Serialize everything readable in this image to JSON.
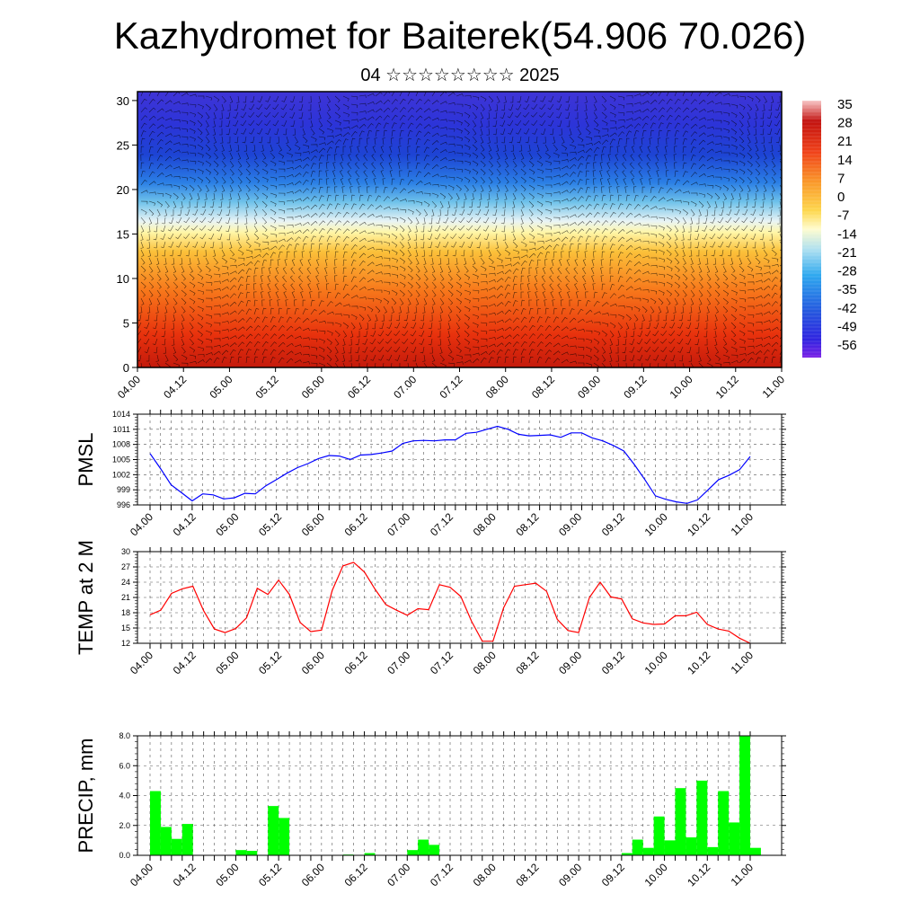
{
  "title": "Kazhydromet for Baiterek(54.906 70.026)",
  "subtitle": "04 ☆☆☆☆☆☆☆☆ 2025",
  "chart_data": [
    {
      "type": "heatmap",
      "name": "cross-section",
      "xlabels": [
        "04.00",
        "04.12",
        "05.00",
        "05.12",
        "06.00",
        "06.12",
        "07.00",
        "07.12",
        "08.00",
        "08.12",
        "09.00",
        "09.12",
        "10.00",
        "10.12",
        "11.00"
      ],
      "ylim": [
        0,
        31
      ],
      "yticks": [
        "0",
        "5",
        "10",
        "15",
        "20",
        "25",
        "30"
      ],
      "colorbar_labels": [
        "35",
        "28",
        "21",
        "14",
        "7",
        "0",
        "-7",
        "-14",
        "-21",
        "-28",
        "-35",
        "-42",
        "-49",
        "-56"
      ]
    },
    {
      "type": "line",
      "name": "pmsl",
      "ylabel": "PMSL",
      "color": "#0000ff",
      "ylim": [
        996,
        1014
      ],
      "yticks": [
        "996",
        "999",
        "1002",
        "1005",
        "1008",
        "1011",
        "1014"
      ],
      "xlabels": [
        "04.00",
        "04.12",
        "05.00",
        "05.12",
        "06.00",
        "06.12",
        "07.00",
        "07.12",
        "08.00",
        "08.12",
        "09.00",
        "09.12",
        "10.00",
        "10.12",
        "11.00"
      ],
      "values": [
        1006.2,
        1003.2,
        1000.0,
        998.4,
        996.8,
        998.2,
        998.0,
        997.2,
        997.4,
        998.3,
        998.2,
        999.8,
        1001.0,
        1002.3,
        1003.4,
        1004.2,
        1005.2,
        1005.8,
        1005.7,
        1005.0,
        1005.9,
        1006.0,
        1006.3,
        1006.7,
        1008.2,
        1008.7,
        1008.8,
        1008.7,
        1008.9,
        1008.9,
        1010.2,
        1010.4,
        1011.0,
        1011.6,
        1011.0,
        1010.0,
        1009.7,
        1009.8,
        1009.9,
        1009.4,
        1010.3,
        1010.3,
        1009.3,
        1008.7,
        1007.8,
        1006.7,
        1004.0,
        1001.0,
        997.8,
        997.1,
        996.6,
        996.3,
        997.0,
        999.0,
        1001.0,
        1001.9,
        1003.0,
        1005.6
      ]
    },
    {
      "type": "line",
      "name": "temp",
      "ylabel": "TEMP at 2 M",
      "color": "#ff0000",
      "ylim": [
        12,
        30
      ],
      "yticks": [
        "12",
        "15",
        "18",
        "21",
        "24",
        "27",
        "30"
      ],
      "xlabels": [
        "04.00",
        "04.12",
        "05.00",
        "05.12",
        "06.00",
        "06.12",
        "07.00",
        "07.12",
        "08.00",
        "08.12",
        "09.00",
        "09.12",
        "10.00",
        "10.12",
        "11.00"
      ],
      "values": [
        17.6,
        18.5,
        21.8,
        22.7,
        23.2,
        18.4,
        14.8,
        14.1,
        14.9,
        17.0,
        22.8,
        21.6,
        24.4,
        21.6,
        16.1,
        14.3,
        14.6,
        22.4,
        27.2,
        27.9,
        26.0,
        22.6,
        19.6,
        18.5,
        17.5,
        18.8,
        18.6,
        23.5,
        23.0,
        21.2,
        16.3,
        12.4,
        12.4,
        19.0,
        23.2,
        23.5,
        23.8,
        22.2,
        16.7,
        14.5,
        14.1,
        21.0,
        24.0,
        21.1,
        20.7,
        16.8,
        16.0,
        15.7,
        15.8,
        17.4,
        17.4,
        18.1,
        15.7,
        14.8,
        14.4,
        13.0,
        12.0
      ]
    },
    {
      "type": "bar",
      "name": "precip",
      "ylabel": "PRECIP, mm",
      "color": "#00ff00",
      "ylim": [
        0,
        8
      ],
      "yticks": [
        "0.0",
        "2.0",
        "4.0",
        "6.0",
        "8.0"
      ],
      "xlabels": [
        "04.00",
        "04.12",
        "05.00",
        "05.12",
        "06.00",
        "06.12",
        "07.00",
        "07.12",
        "08.00",
        "08.12",
        "09.00",
        "09.12",
        "10.00",
        "10.12",
        "11.00"
      ],
      "values": [
        4.3,
        1.9,
        1.1,
        2.1,
        0,
        0,
        0,
        0,
        0.35,
        0.3,
        0,
        3.3,
        2.5,
        0,
        0,
        0,
        0,
        0,
        0.05,
        0,
        0.15,
        0,
        0,
        0,
        0.35,
        1.05,
        0.7,
        0,
        0,
        0,
        0,
        0,
        0,
        0,
        0,
        0,
        0,
        0,
        0,
        0,
        0,
        0,
        0,
        0,
        0.15,
        1.05,
        0.5,
        2.6,
        1.0,
        4.5,
        1.2,
        5.0,
        0.55,
        4.3,
        2.2,
        8.0,
        0.5
      ]
    }
  ]
}
